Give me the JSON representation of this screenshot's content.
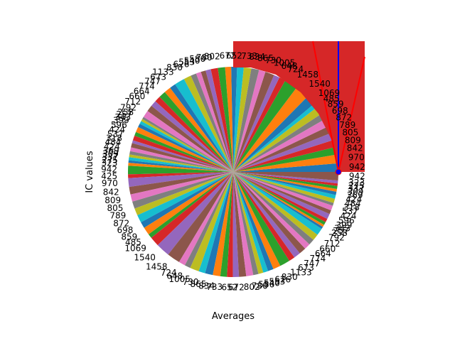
{
  "chart_data": {
    "type": "pie",
    "xlabel": "Averages",
    "ylabel": "IC values",
    "start_angle_deg": 0,
    "direction": "counterclockwise",
    "values": [
      942,
      970,
      842,
      809,
      805,
      789,
      872,
      698,
      859,
      485,
      1069,
      1540,
      1458,
      724,
      648,
      1005,
      730,
      865,
      834,
      733,
      652,
      672,
      802,
      780,
      586,
      540,
      553,
      626,
      830,
      1133,
      673,
      747,
      774,
      664,
      660,
      712,
      792,
      258,
      257,
      343,
      399,
      596,
      424,
      537,
      318,
      484,
      424,
      369,
      309,
      337,
      275,
      323,
      942,
      425,
      970,
      842,
      809,
      805,
      789,
      872,
      698,
      859,
      485,
      1069,
      1540,
      1458,
      724,
      648,
      1005,
      730,
      865,
      834,
      733,
      652,
      672,
      802,
      780,
      586,
      540,
      553,
      626,
      830,
      1133,
      673,
      747,
      774,
      664,
      660,
      712,
      792,
      258,
      257,
      343,
      399,
      596,
      424,
      537,
      318,
      484,
      424,
      369,
      309,
      337,
      275,
      323,
      942
    ],
    "colors": [
      "#1f77b4",
      "#ff7f0e",
      "#2ca02c",
      "#d62728",
      "#9467bd",
      "#8c564b",
      "#e377c2",
      "#7f7f7f",
      "#bcbd22",
      "#17becf"
    ],
    "overlay": {
      "rect_color": "#d62728",
      "vertical_line_color": "#0000ff",
      "diagonal_line_color": "#ff0000",
      "marker_color": "#0000ff"
    }
  }
}
